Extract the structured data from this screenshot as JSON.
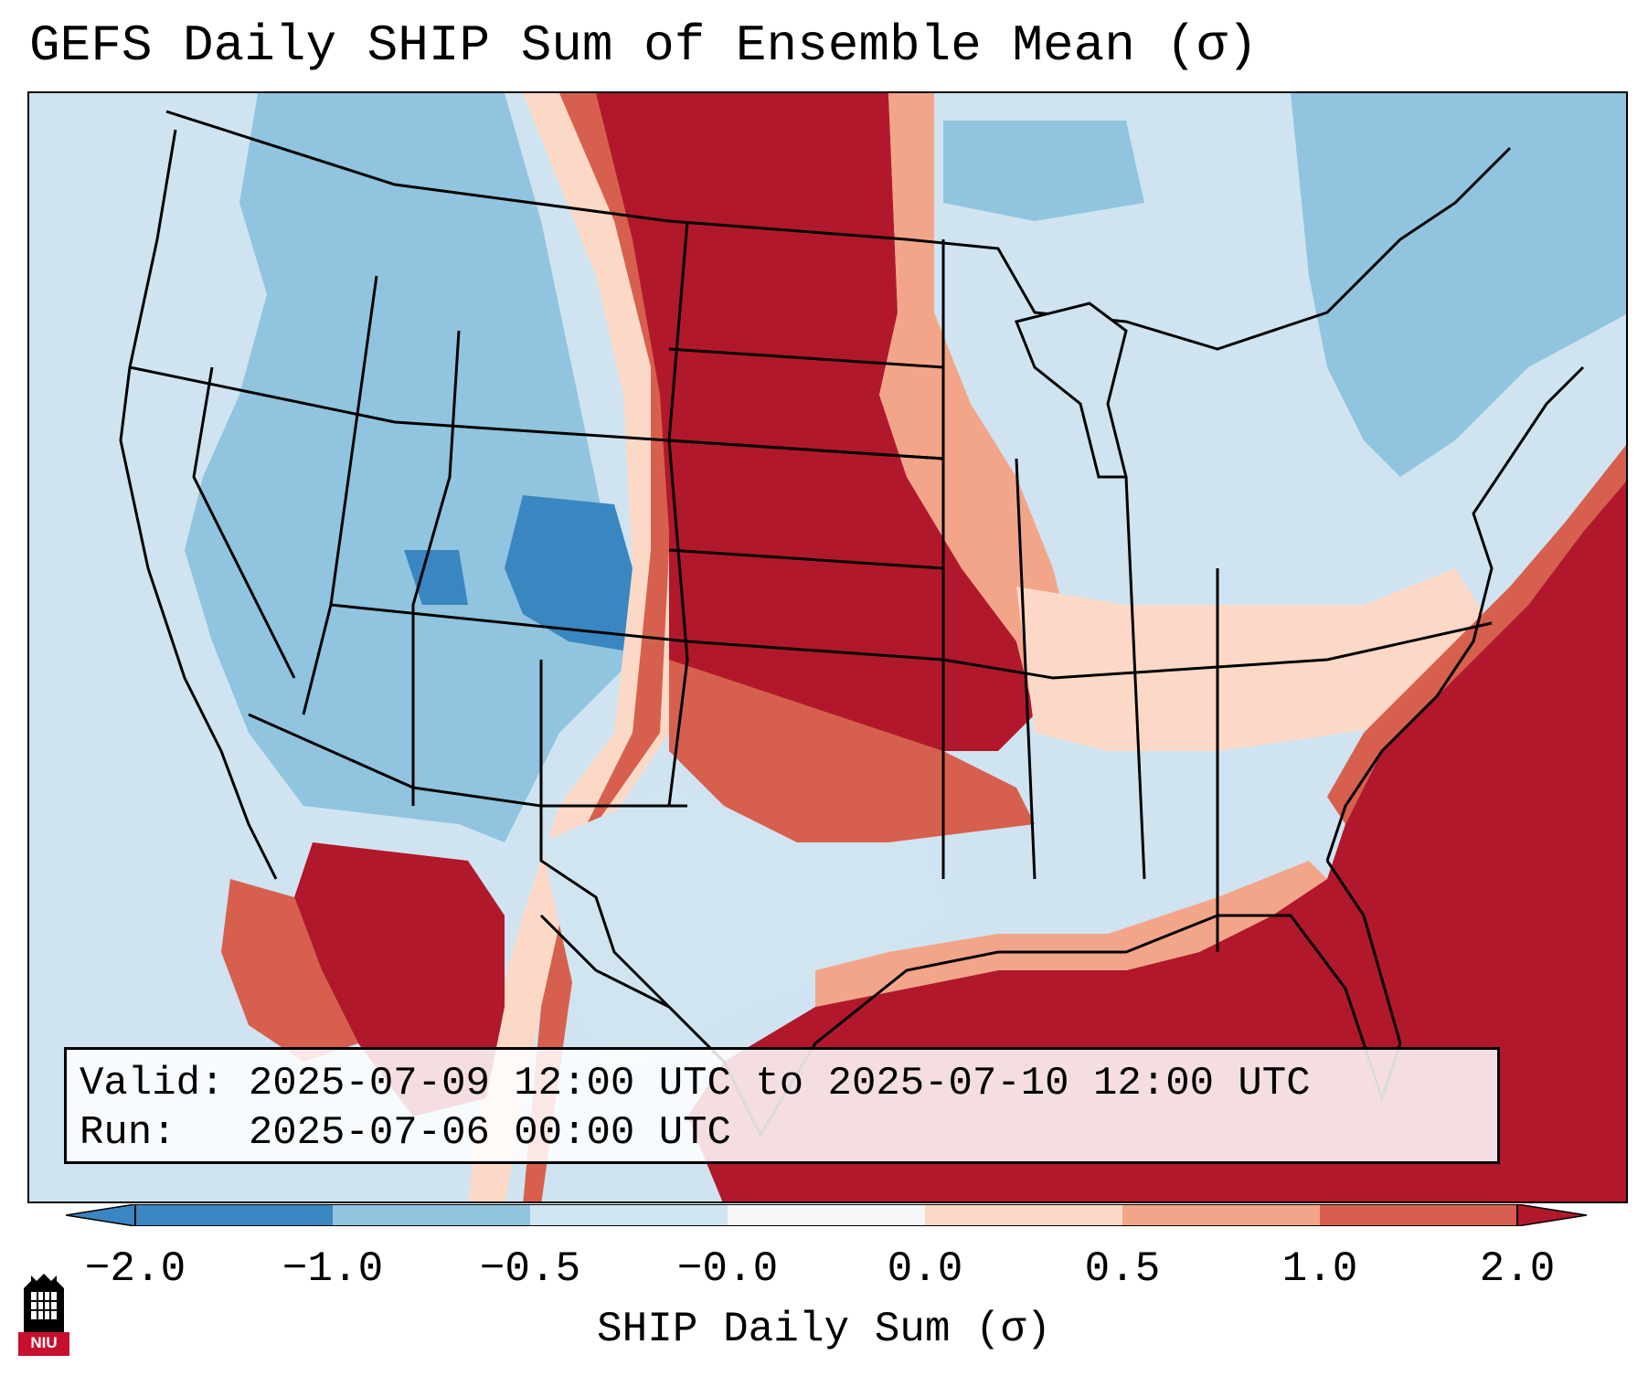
{
  "title": "GEFS Daily SHIP Sum of Ensemble Mean (σ)",
  "info": {
    "valid_line": "Valid: 2025-07-09 12:00 UTC to 2025-07-10 12:00 UTC",
    "run_line": "Run:   2025-07-06 00:00 UTC"
  },
  "colorbar": {
    "label": "SHIP Daily Sum (σ)",
    "ticks": [
      "−2.0",
      "−1.0",
      "−0.5",
      "−0.0",
      "0.0",
      "0.5",
      "1.0",
      "2.0"
    ],
    "bins": [
      {
        "range": "< -2.0",
        "color": "#3a86c0"
      },
      {
        "range": "-2.0 to -1.0",
        "color": "#3a86c0"
      },
      {
        "range": "-1.0 to -0.5",
        "color": "#91c4de"
      },
      {
        "range": "-0.5 to -0.0",
        "color": "#d0e5f0"
      },
      {
        "range": "-0.0 to 0.0",
        "color": "#f7f7f7"
      },
      {
        "range": "0.0 to 0.5",
        "color": "#fcd9c6"
      },
      {
        "range": "0.5 to 1.0",
        "color": "#f3a58a"
      },
      {
        "range": "1.0 to 2.0",
        "color": "#d6604d"
      },
      {
        "range": "> 2.0",
        "color": "#b2182b"
      }
    ]
  },
  "map_regions": [
    {
      "name": "northern-plains",
      "value_class": "> 2.0"
    },
    {
      "name": "central-plains",
      "value_class": "> 2.0"
    },
    {
      "name": "atlantic-southeast",
      "value_class": "> 2.0"
    },
    {
      "name": "gulf-of-mexico",
      "value_class": "> 2.0"
    },
    {
      "name": "northwest-mexico",
      "value_class": "> 2.0"
    },
    {
      "name": "colorado-utah",
      "value_class": "-2.0 to -1.0"
    },
    {
      "name": "intermountain-west",
      "value_class": "-1.0 to -0.5"
    },
    {
      "name": "texas",
      "value_class": "-0.5 to -0.0"
    },
    {
      "name": "ohio-valley",
      "value_class": "0.0 to 0.5"
    }
  ],
  "logo": {
    "text": "NIU"
  }
}
